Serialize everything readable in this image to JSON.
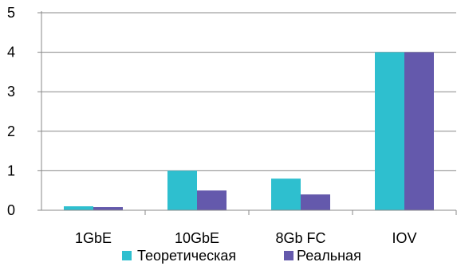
{
  "chart_data": {
    "type": "bar",
    "categories": [
      "1GbE",
      "10GbE",
      "8Gb FC",
      "IOV"
    ],
    "series": [
      {
        "name": "Теоретическая",
        "values": [
          0.1,
          1.0,
          0.8,
          4.0
        ],
        "color": "#2ebfcf"
      },
      {
        "name": "Реальная",
        "values": [
          0.08,
          0.5,
          0.4,
          4.0
        ],
        "color": "#6459ac"
      }
    ],
    "ylim": [
      0,
      5
    ],
    "yticks": [
      "0",
      "1",
      "2",
      "3",
      "4",
      "5"
    ],
    "grid": true,
    "legend_placement": "bottom",
    "title": "",
    "xlabel": "",
    "ylabel": ""
  }
}
